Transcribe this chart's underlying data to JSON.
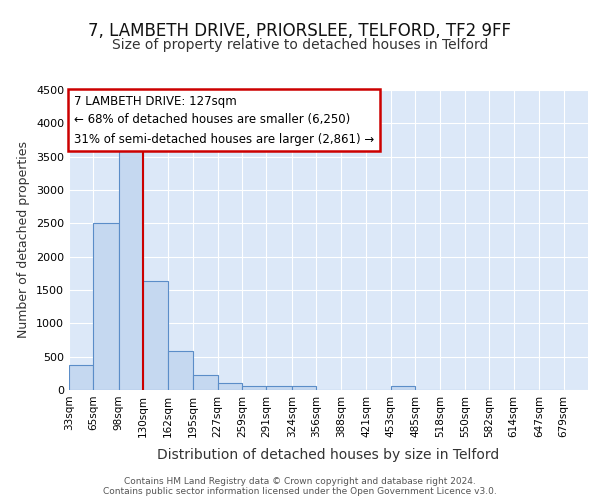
{
  "title1": "7, LAMBETH DRIVE, PRIORSLEE, TELFORD, TF2 9FF",
  "title2": "Size of property relative to detached houses in Telford",
  "xlabel": "Distribution of detached houses by size in Telford",
  "ylabel": "Number of detached properties",
  "bin_labels": [
    "33sqm",
    "65sqm",
    "98sqm",
    "130sqm",
    "162sqm",
    "195sqm",
    "227sqm",
    "259sqm",
    "291sqm",
    "324sqm",
    "356sqm",
    "388sqm",
    "421sqm",
    "453sqm",
    "485sqm",
    "518sqm",
    "550sqm",
    "582sqm",
    "614sqm",
    "647sqm",
    "679sqm"
  ],
  "bin_edges": [
    33,
    65,
    98,
    130,
    162,
    195,
    227,
    259,
    291,
    324,
    356,
    388,
    421,
    453,
    485,
    518,
    550,
    582,
    614,
    647,
    679
  ],
  "bar_heights": [
    370,
    2500,
    3750,
    1630,
    590,
    230,
    100,
    60,
    55,
    55,
    0,
    0,
    0,
    55,
    0,
    0,
    0,
    0,
    0,
    0
  ],
  "bar_color": "#c5d8f0",
  "bar_edge_color": "#5b8dc8",
  "red_line_x": 130,
  "ylim": [
    0,
    4500
  ],
  "yticks": [
    0,
    500,
    1000,
    1500,
    2000,
    2500,
    3000,
    3500,
    4000,
    4500
  ],
  "annotation_title": "7 LAMBETH DRIVE: 127sqm",
  "annotation_line1": "← 68% of detached houses are smaller (6,250)",
  "annotation_line2": "31% of semi-detached houses are larger (2,861) →",
  "annotation_box_color": "#ffffff",
  "annotation_box_edge": "#cc0000",
  "bg_color": "#dce8f8",
  "footer1": "Contains HM Land Registry data © Crown copyright and database right 2024.",
  "footer2": "Contains public sector information licensed under the Open Government Licence v3.0.",
  "grid_color": "#ffffff",
  "title1_fontsize": 12,
  "title2_fontsize": 10,
  "ylabel_fontsize": 9,
  "xlabel_fontsize": 10
}
